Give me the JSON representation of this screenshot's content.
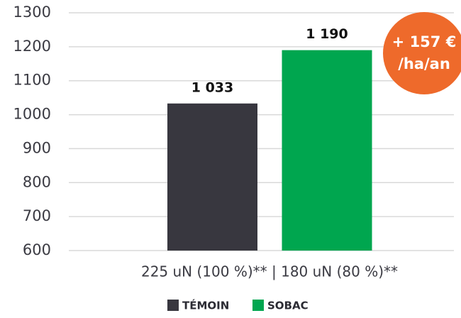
{
  "chart_data": {
    "type": "bar",
    "categories": [
      "225 uN (100 %)** | 180 uN (80 %)**"
    ],
    "series": [
      {
        "name": "TÉMOIN",
        "color": "#38373f",
        "values": [
          1033
        ],
        "value_labels": [
          "1 033"
        ]
      },
      {
        "name": "SOBAC",
        "color": "#00a64f",
        "values": [
          1190
        ],
        "value_labels": [
          "1 190"
        ]
      }
    ],
    "ylim": [
      600,
      1300
    ],
    "yticks": [
      600,
      700,
      800,
      900,
      1000,
      1100,
      1200,
      1300
    ],
    "grid": true,
    "annotations": [
      "+ 157 €",
      "/ha/an"
    ],
    "annotation_color": "#ee6a2b"
  }
}
